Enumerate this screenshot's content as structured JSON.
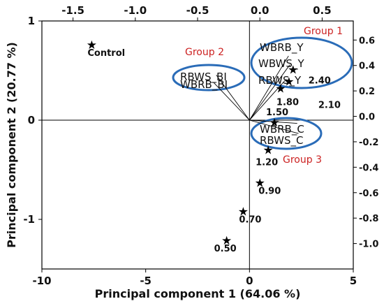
{
  "chart_data": {
    "type": "scatter",
    "xlabel": "Principal component 1 (64.06 %)",
    "ylabel": "Principal component 2 (20.77 %)",
    "xlim": [
      -10,
      5
    ],
    "ylim": [
      -1.5,
      1.0
    ],
    "x_ticks": [
      "-10",
      "-5",
      "0",
      "5"
    ],
    "y_ticks": [
      "1",
      "0",
      "-1"
    ],
    "top_lim": [
      -1.75,
      0.75
    ],
    "top_ticks": [
      "-1.5",
      "-1.0",
      "-0.5",
      "0.0",
      "0.5"
    ],
    "right_lim": [
      -1.2,
      0.75
    ],
    "right_ticks": [
      "0.6",
      "0.4",
      "0.2",
      "0.0",
      "-0.2",
      "-0.4",
      "-0.6",
      "-0.8",
      "-1.0"
    ],
    "observations": [
      {
        "label": "Control",
        "x": -7.6,
        "y": 0.76
      },
      {
        "label": "2.40",
        "x": 2.1,
        "y": 0.51
      },
      {
        "label": "2.10",
        "x": 1.9,
        "y": 0.39
      },
      {
        "label": "1.80",
        "x": 1.5,
        "y": 0.32
      },
      {
        "label": "1.50",
        "x": 1.2,
        "y": -0.02
      },
      {
        "label": "1.20",
        "x": 0.9,
        "y": -0.3
      },
      {
        "label": "0.90",
        "x": 0.5,
        "y": -0.63
      },
      {
        "label": "0.70",
        "x": -0.3,
        "y": -0.92
      },
      {
        "label": "0.50",
        "x": -1.1,
        "y": -1.21
      }
    ],
    "variables": [
      {
        "label": "WBRB_Y",
        "x": 0.23,
        "y": 0.475
      },
      {
        "label": "WBWS_Y",
        "x": 0.24,
        "y": 0.405
      },
      {
        "label": "RBWS_Y",
        "x": 0.2,
        "y": 0.28
      },
      {
        "label": "RBWS_BI",
        "x": -0.35,
        "y": 0.325
      },
      {
        "label": "WBRB_BI",
        "x": -0.37,
        "y": 0.265
      },
      {
        "label": "WBRB_C",
        "x": 0.3,
        "y": -0.055
      },
      {
        "label": "RBWS_C",
        "x": 0.31,
        "y": -0.135
      }
    ],
    "groups": [
      {
        "label": "Group 1",
        "color": "#cc2222"
      },
      {
        "label": "Group 2",
        "color": "#cc2222"
      },
      {
        "label": "Group 3",
        "color": "#cc2222"
      }
    ],
    "ellipse_color": "#2a6cb8",
    "grid": false
  }
}
